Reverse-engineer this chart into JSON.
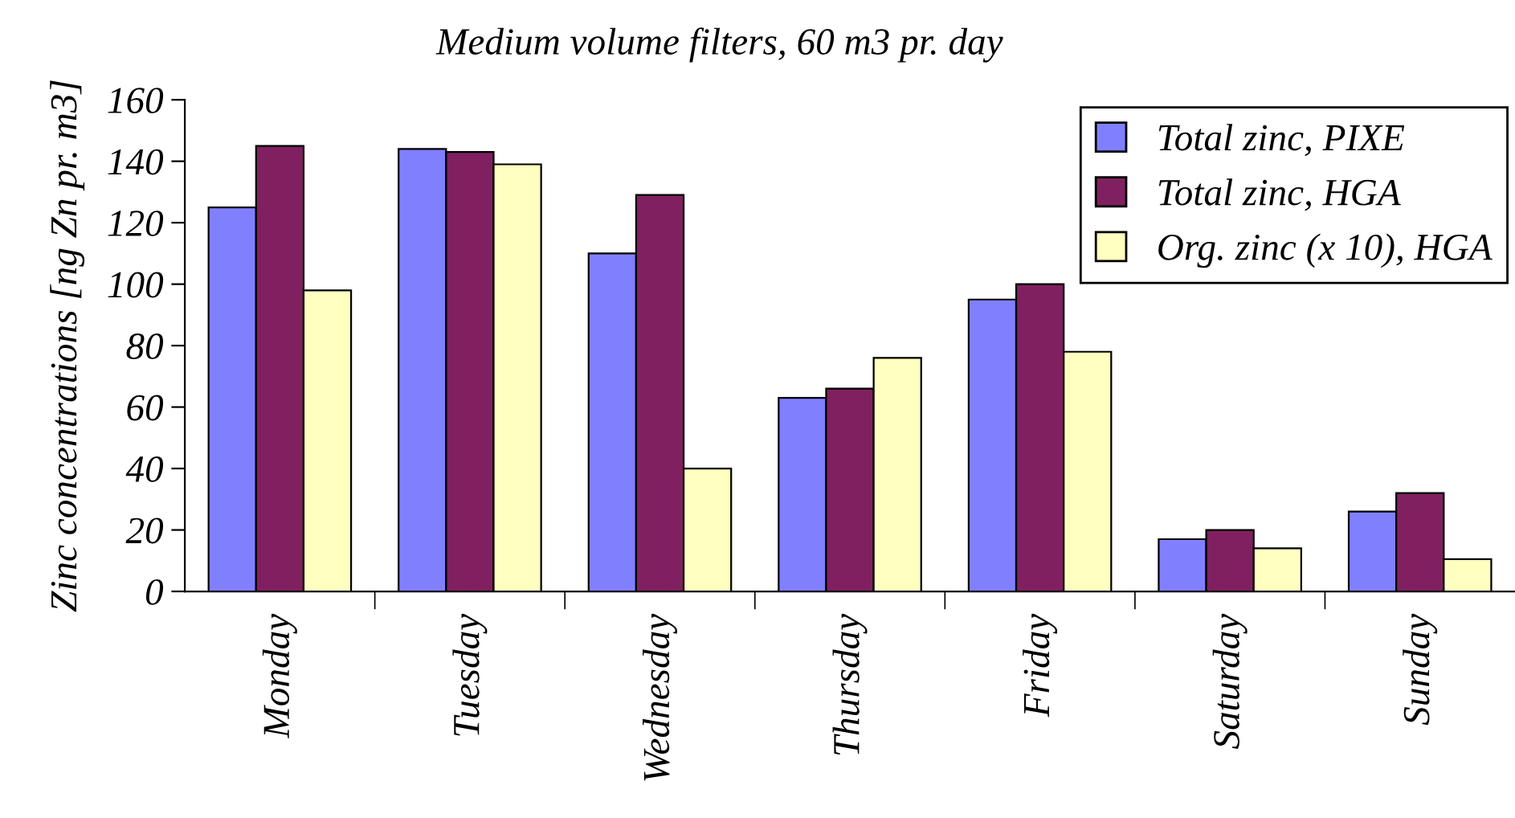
{
  "chart_data": {
    "type": "bar",
    "title": "Medium volume filters, 60 m3 pr. day",
    "ylabel": "Zinc concentrations [ng Zn pr. m3]",
    "categories": [
      "Monday",
      "Tuesday",
      "Wednesday",
      "Thursday",
      "Friday",
      "Saturday",
      "Sunday"
    ],
    "series": [
      {
        "name": "Total zinc, PIXE",
        "color": "#8080ff",
        "values": [
          125,
          144,
          110,
          63,
          95,
          17,
          26
        ]
      },
      {
        "name": "Total zinc, HGA",
        "color": "#802060",
        "values": [
          145,
          143,
          129,
          66,
          100,
          20,
          32
        ]
      },
      {
        "name": "Org. zinc (x 10), HGA",
        "color": "#ffffc0",
        "values": [
          98,
          139,
          40,
          76,
          78,
          14,
          10.5
        ]
      }
    ],
    "ylim": [
      0,
      160
    ],
    "yticks": [
      0,
      20,
      40,
      60,
      80,
      100,
      120,
      140,
      160
    ],
    "grid": false,
    "legend": "top right"
  }
}
